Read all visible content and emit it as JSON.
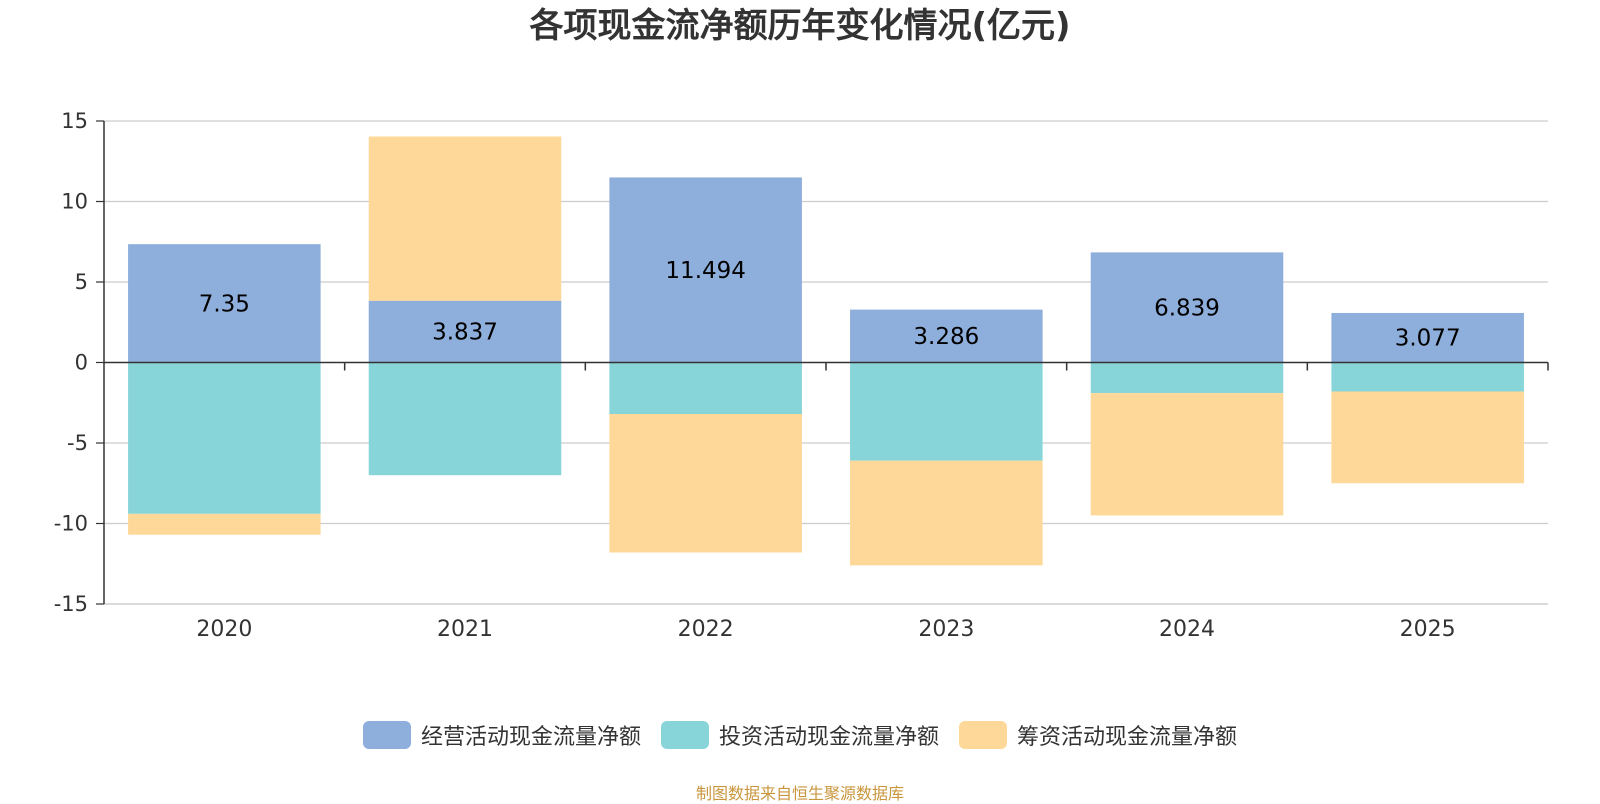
{
  "title": "各项现金流净额历年变化情况(亿元)",
  "source": "制图数据来自恒生聚源数据库",
  "colors": {
    "operating": "#8eaedb",
    "investing": "#87d5d8",
    "financing": "#fed898"
  },
  "chart_data": {
    "type": "bar",
    "stacked": true,
    "title": "各项现金流净额历年变化情况(亿元)",
    "categories": [
      "2020",
      "2021",
      "2022",
      "2023",
      "2024",
      "2025"
    ],
    "ylim": [
      -15,
      15
    ],
    "yticks": [
      15,
      10,
      5,
      0,
      -5,
      -10,
      -15
    ],
    "grid": true,
    "legend": "bottom",
    "series": [
      {
        "name": "经营活动现金流量净额",
        "values": [
          7.35,
          3.837,
          11.494,
          3.286,
          6.839,
          3.077
        ],
        "labels": [
          "7.35",
          "3.837",
          "11.494",
          "3.286",
          "6.839",
          "3.077"
        ]
      },
      {
        "name": "投资活动现金流量净额",
        "values": [
          -9.4,
          -7.0,
          -3.2,
          -6.1,
          -1.9,
          -1.8
        ]
      },
      {
        "name": "筹资活动现金流量净额",
        "values": [
          -1.3,
          10.2,
          -8.6,
          -6.5,
          -7.6,
          -5.7
        ]
      }
    ]
  }
}
